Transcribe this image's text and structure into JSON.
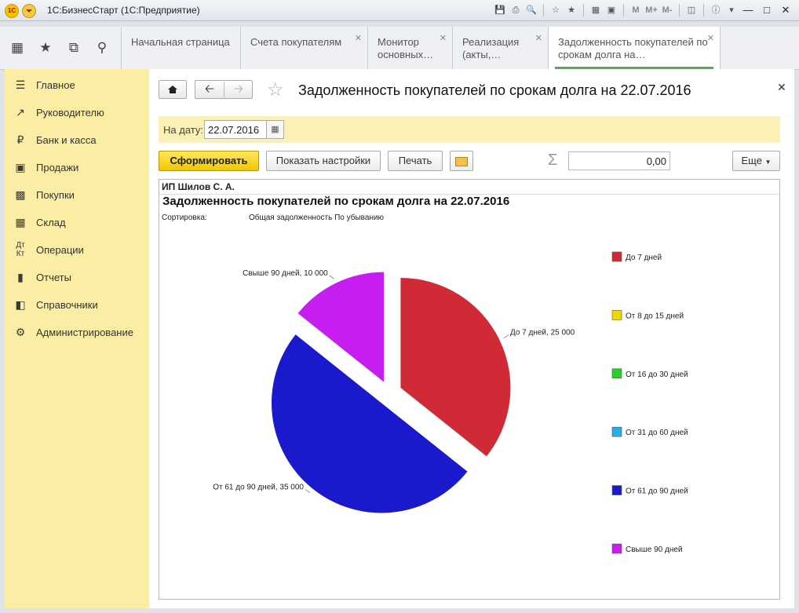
{
  "window": {
    "title": "1С:БизнесСтарт  (1С:Предприятие)",
    "logo_text": "1С",
    "toolbar_icons": [
      "save-icon",
      "print-icon",
      "preview-icon",
      "favorite-add-icon",
      "favorites-icon",
      "calculator-icon",
      "calendar-icon"
    ],
    "memory_labels": [
      "M",
      "M+",
      "M-"
    ]
  },
  "quick_icons": [
    "apps-grid-icon",
    "star-icon",
    "history-icon",
    "search-icon"
  ],
  "tabs": [
    {
      "label": "Начальная страница",
      "closable": false
    },
    {
      "label": "Счета покупателям",
      "closable": true
    },
    {
      "label": "Монитор основных…",
      "closable": true
    },
    {
      "label": "Реализация (акты,…",
      "closable": true
    },
    {
      "label": "Задолженность покупателей по срокам долга на…",
      "closable": true,
      "active": true
    }
  ],
  "sidebar": {
    "items": [
      {
        "label": "Главное",
        "icon": "list-icon"
      },
      {
        "label": "Руководителю",
        "icon": "trend-icon"
      },
      {
        "label": "Банк и касса",
        "icon": "ruble-icon"
      },
      {
        "label": "Продажи",
        "icon": "bag-icon"
      },
      {
        "label": "Покупки",
        "icon": "cart-icon"
      },
      {
        "label": "Склад",
        "icon": "warehouse-icon"
      },
      {
        "label": "Операции",
        "icon": "operations-icon"
      },
      {
        "label": "Отчеты",
        "icon": "bar-chart-icon"
      },
      {
        "label": "Справочники",
        "icon": "book-icon"
      },
      {
        "label": "Администрирование",
        "icon": "gear-icon"
      }
    ]
  },
  "form": {
    "title": "Задолженность покупателей по срокам долга на 22.07.2016",
    "date_label": "На дату:",
    "date_value": "22.07.2016",
    "buttons": {
      "generate": "Сформировать",
      "settings": "Показать настройки",
      "print": "Печать",
      "more": "Еще"
    },
    "sum_value": "0,00"
  },
  "report": {
    "org": "ИП Шилов С. А.",
    "title": "Задолженность покупателей по срокам долга на 22.07.2016",
    "sort_label": "Сортировка:",
    "sort_value": "Общая задолженность По убыванию"
  },
  "chart_data": {
    "type": "pie",
    "title": "",
    "slices": [
      {
        "name": "До 7 дней",
        "value": 25000,
        "label": "До 7 дней, 25 000",
        "color": "#d02a36"
      },
      {
        "name": "От 61 до 90 дней",
        "value": 35000,
        "label": "От 61 до 90 дней, 35 000",
        "color": "#1a1acc"
      },
      {
        "name": "Свыше 90 дней",
        "value": 10000,
        "label": "Свыше 90 дней, 10 000",
        "color": "#c61ef0"
      }
    ],
    "legend": [
      {
        "name": "До 7 дней",
        "color": "#d02a36"
      },
      {
        "name": "От 8 до 15 дней",
        "color": "#f2d600"
      },
      {
        "name": "От 16 до 30 дней",
        "color": "#2ecc2e"
      },
      {
        "name": "От 31 до 60 дней",
        "color": "#22b0e8"
      },
      {
        "name": "От 61 до 90 дней",
        "color": "#1a1acc"
      },
      {
        "name": "Свыше 90 дней",
        "color": "#c61ef0"
      }
    ],
    "legend_position": "right"
  }
}
